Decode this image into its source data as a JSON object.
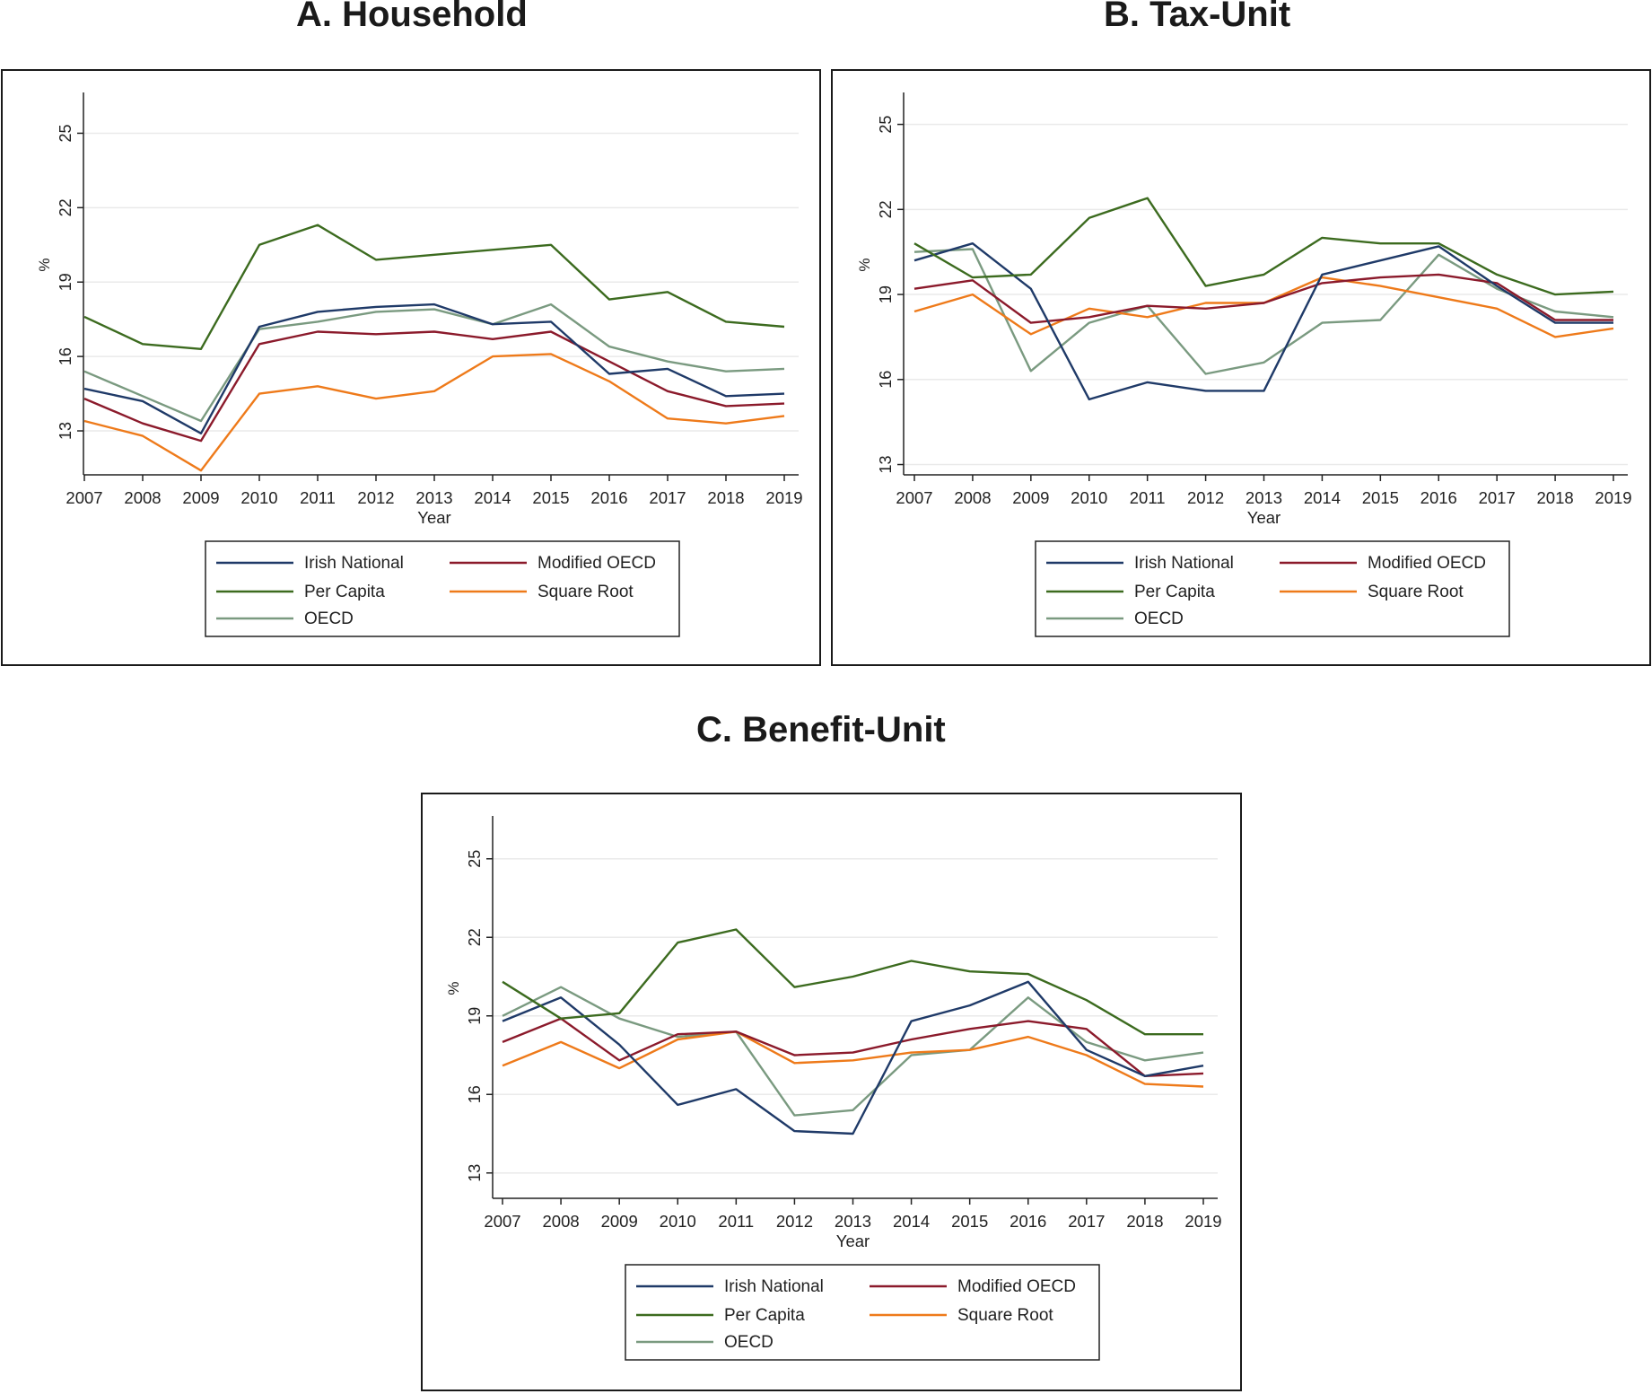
{
  "chart_data": [
    {
      "type": "line",
      "title": "A. Household",
      "xlabel": "Year",
      "ylabel": "%",
      "x": [
        2007,
        2008,
        2009,
        2010,
        2011,
        2012,
        2013,
        2014,
        2015,
        2016,
        2017,
        2018,
        2019
      ],
      "ylim": [
        11.3,
        26.5
      ],
      "yticks": [
        13,
        16,
        19,
        22,
        25
      ],
      "grid": true,
      "legend": "bottom",
      "series": [
        {
          "name": "Irish National",
          "color": "#1f3a68",
          "values": [
            14.7,
            14.2,
            12.9,
            17.2,
            17.8,
            18.0,
            18.1,
            17.3,
            17.4,
            15.3,
            15.5,
            14.4,
            14.5
          ]
        },
        {
          "name": "Modified OECD",
          "color": "#8b1a2b",
          "values": [
            14.3,
            13.3,
            12.6,
            16.5,
            17.0,
            16.9,
            17.0,
            16.7,
            17.0,
            15.8,
            14.6,
            14.0,
            14.1
          ]
        },
        {
          "name": "Per Capita",
          "color": "#3c6b1f",
          "values": [
            17.6,
            16.5,
            16.3,
            20.5,
            21.3,
            19.9,
            20.1,
            20.3,
            20.5,
            18.3,
            18.6,
            17.4,
            17.2
          ]
        },
        {
          "name": "Square Root",
          "color": "#ee7a1a",
          "values": [
            13.4,
            12.8,
            11.4,
            14.5,
            14.8,
            14.3,
            14.6,
            16.0,
            16.1,
            15.0,
            13.5,
            13.3,
            13.6
          ]
        },
        {
          "name": "OECD",
          "color": "#7a9a80",
          "values": [
            15.4,
            14.4,
            13.4,
            17.1,
            17.4,
            17.8,
            17.9,
            17.3,
            18.1,
            16.4,
            15.8,
            15.4,
            15.5
          ]
        }
      ]
    },
    {
      "type": "line",
      "title": "B. Tax-Unit",
      "xlabel": "Year",
      "ylabel": "%",
      "x": [
        2007,
        2008,
        2009,
        2010,
        2011,
        2012,
        2013,
        2014,
        2015,
        2016,
        2017,
        2018,
        2019
      ],
      "ylim": [
        12.7,
        26.0
      ],
      "yticks": [
        13,
        16,
        19,
        22,
        25
      ],
      "grid": true,
      "legend": "bottom",
      "series": [
        {
          "name": "Irish National",
          "color": "#1f3a68",
          "values": [
            20.2,
            20.8,
            19.2,
            15.3,
            15.9,
            15.6,
            15.6,
            19.7,
            20.2,
            20.7,
            19.3,
            18.0,
            18.0
          ]
        },
        {
          "name": "Modified OECD",
          "color": "#8b1a2b",
          "values": [
            19.2,
            19.5,
            18.0,
            18.2,
            18.6,
            18.5,
            18.7,
            19.4,
            19.6,
            19.7,
            19.4,
            18.1,
            18.1
          ]
        },
        {
          "name": "Per Capita",
          "color": "#3c6b1f",
          "values": [
            20.8,
            19.6,
            19.7,
            21.7,
            22.4,
            19.3,
            19.7,
            21.0,
            20.8,
            20.8,
            19.7,
            19.0,
            19.1
          ]
        },
        {
          "name": "Square Root",
          "color": "#ee7a1a",
          "values": [
            18.4,
            19.0,
            17.6,
            18.5,
            18.2,
            18.7,
            18.7,
            19.6,
            19.3,
            18.9,
            18.5,
            17.5,
            17.8
          ]
        },
        {
          "name": "OECD",
          "color": "#7a9a80",
          "values": [
            20.5,
            20.6,
            16.3,
            18.0,
            18.6,
            16.2,
            16.6,
            18.0,
            18.1,
            20.4,
            19.2,
            18.4,
            18.2
          ]
        }
      ]
    },
    {
      "type": "line",
      "title": "C. Benefit-Unit",
      "xlabel": "Year",
      "ylabel": "%",
      "x": [
        2007,
        2008,
        2009,
        2010,
        2011,
        2012,
        2013,
        2014,
        2015,
        2016,
        2017,
        2018,
        2019
      ],
      "ylim": [
        12.1,
        26.5
      ],
      "yticks": [
        13,
        16,
        19,
        22,
        25
      ],
      "grid": true,
      "legend": "bottom",
      "series": [
        {
          "name": "Irish National",
          "color": "#1f3a68",
          "values": [
            18.8,
            19.7,
            17.9,
            15.6,
            16.2,
            14.6,
            14.5,
            18.8,
            19.4,
            20.3,
            17.7,
            16.7,
            17.1
          ]
        },
        {
          "name": "Modified OECD",
          "color": "#8b1a2b",
          "values": [
            18.0,
            18.9,
            17.3,
            18.3,
            18.4,
            17.5,
            17.6,
            18.1,
            18.5,
            18.8,
            18.5,
            16.7,
            16.8
          ]
        },
        {
          "name": "Per Capita",
          "color": "#3c6b1f",
          "values": [
            20.3,
            18.9,
            19.1,
            21.8,
            22.3,
            20.1,
            20.5,
            21.1,
            20.7,
            20.6,
            19.6,
            18.3,
            18.3
          ]
        },
        {
          "name": "Square Root",
          "color": "#ee7a1a",
          "values": [
            17.1,
            18.0,
            17.0,
            18.1,
            18.4,
            17.2,
            17.3,
            17.6,
            17.7,
            18.2,
            17.5,
            16.4,
            16.3
          ]
        },
        {
          "name": "OECD",
          "color": "#7a9a80",
          "values": [
            19.0,
            20.1,
            18.9,
            18.2,
            18.4,
            15.2,
            15.4,
            17.5,
            17.7,
            19.7,
            18.0,
            17.3,
            17.6
          ]
        }
      ]
    }
  ]
}
